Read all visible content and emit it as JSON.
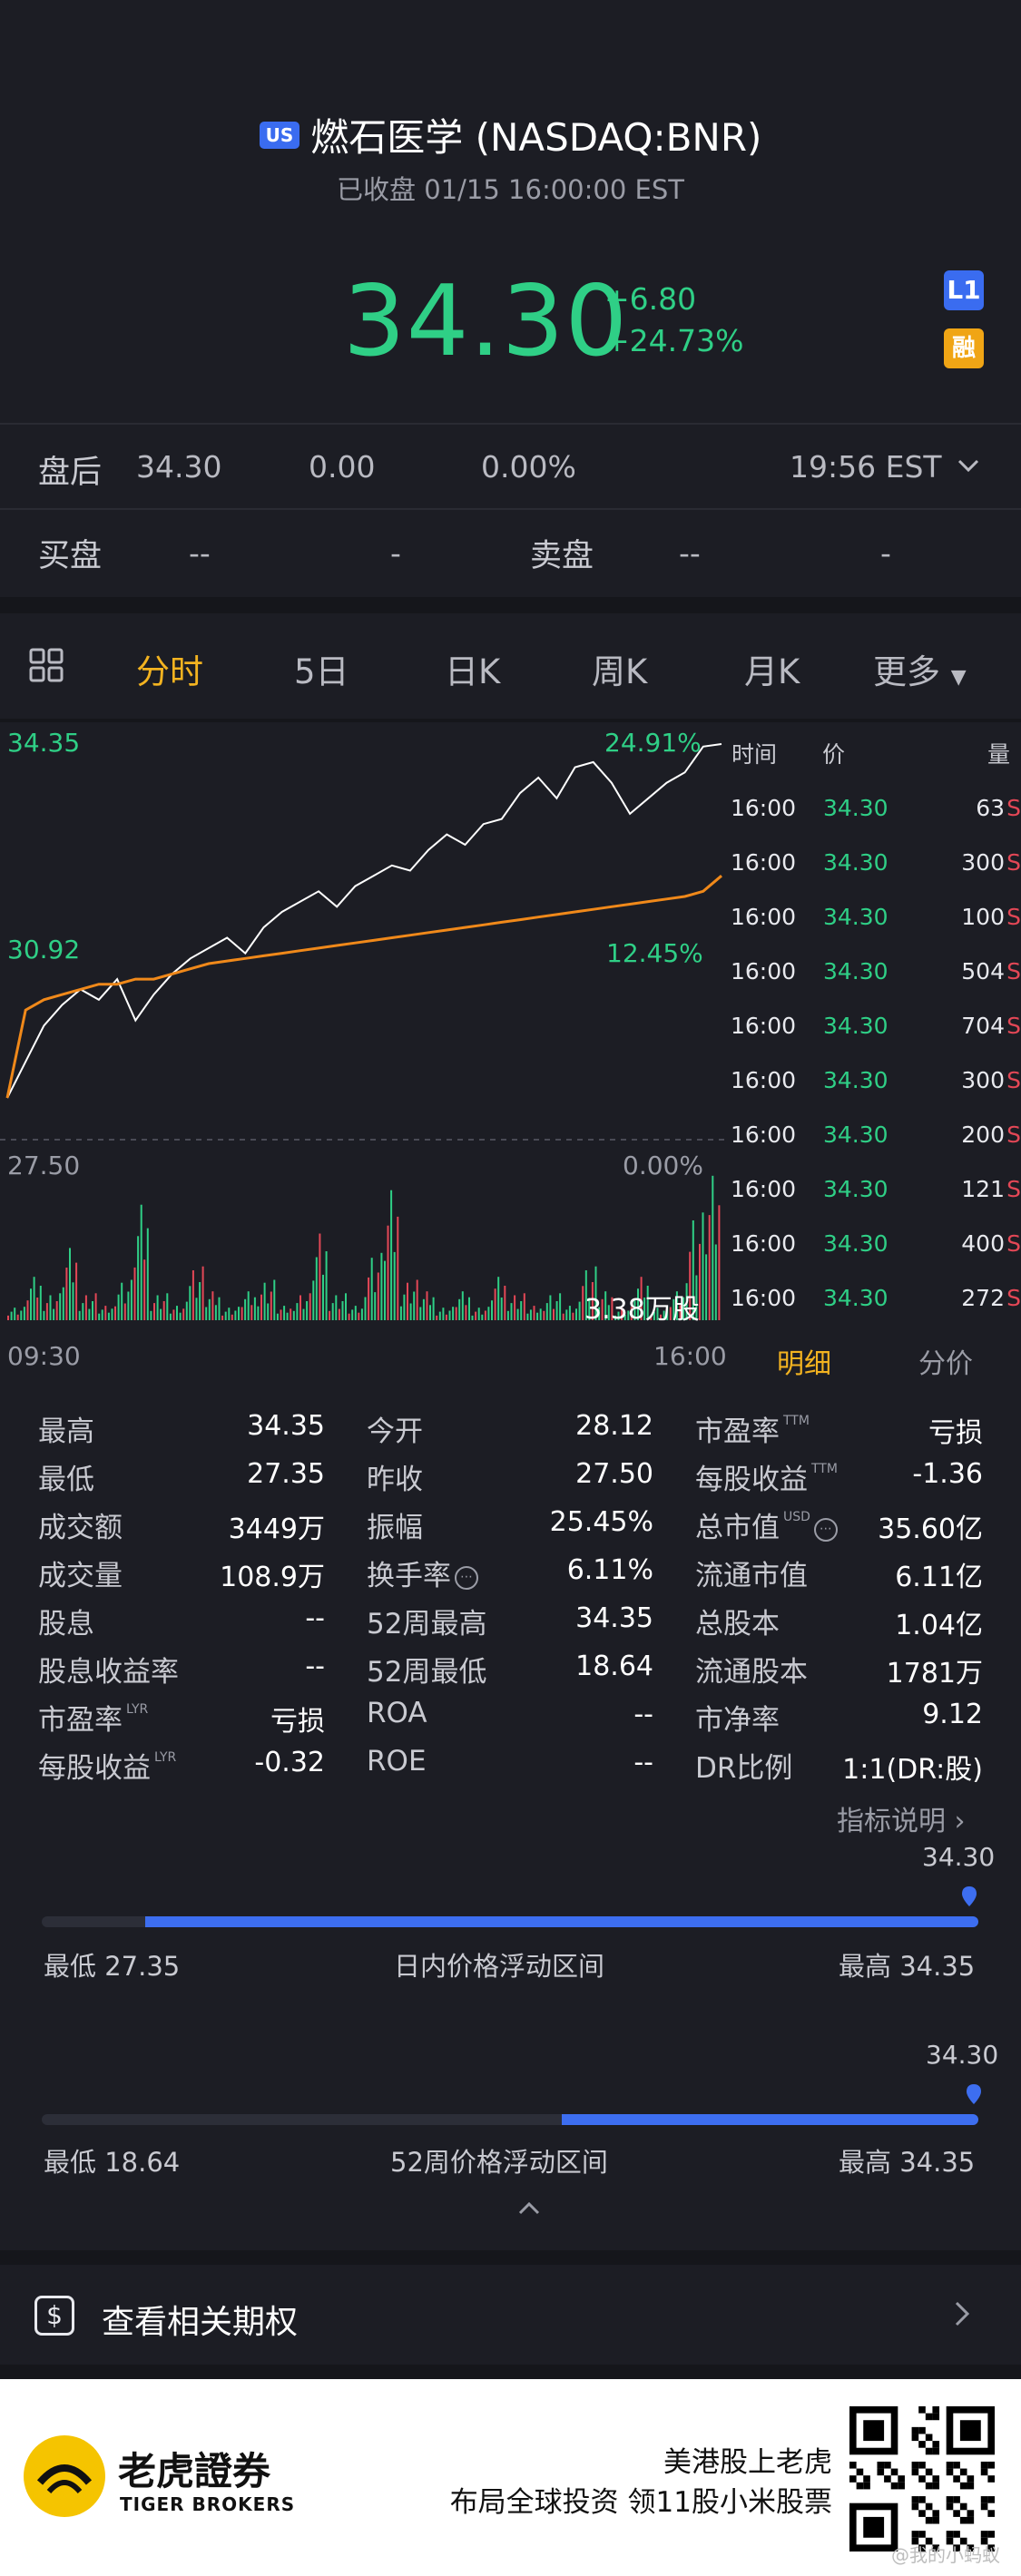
{
  "header": {
    "market_badge": "US",
    "title": "燃石医学 (NASDAQ:BNR)",
    "status": "已收盘 01/15 16:00:00 EST",
    "price": "34.30",
    "change": "+6.80",
    "change_pct": "+24.73%",
    "l1_badge": "L1",
    "margin_badge": "融"
  },
  "after_hours": {
    "label": "盘后",
    "price": "34.30",
    "change": "0.00",
    "change_pct": "0.00%",
    "time": "19:56 EST"
  },
  "quote": {
    "bid_label": "买盘",
    "bid_price": "--",
    "bid_size": "-",
    "ask_label": "卖盘",
    "ask_price": "--",
    "ask_size": "-"
  },
  "tabs": [
    {
      "label": "分时",
      "active": true
    },
    {
      "label": "5日"
    },
    {
      "label": "日K"
    },
    {
      "label": "周K"
    },
    {
      "label": "月K"
    },
    {
      "label": "更多"
    }
  ],
  "chart": {
    "price_high": "34.35",
    "pct_high": "24.91%",
    "price_mid": "30.92",
    "pct_mid": "12.45%",
    "price_low": "27.50",
    "pct_low": "0.00%",
    "volume_label": "3.38万股",
    "time_start": "09:30",
    "time_end": "16:00"
  },
  "chart_data": {
    "type": "line",
    "series": [
      {
        "values": [
          27.5,
          28.2,
          28.9,
          29.3,
          29.6,
          29.4,
          29.8,
          29.0,
          29.5,
          29.9,
          30.2,
          30.4,
          30.6,
          30.3,
          30.8,
          31.1,
          31.3,
          31.5,
          31.2,
          31.6,
          31.8,
          32.0,
          31.9,
          32.3,
          32.6,
          32.4,
          32.8,
          32.9,
          33.4,
          33.7,
          33.3,
          33.9,
          34.0,
          33.6,
          33.0,
          33.3,
          33.6,
          33.8,
          34.3,
          34.35
        ]
      },
      {
        "values": [
          27.5,
          29.2,
          29.4,
          29.5,
          29.6,
          29.7,
          29.7,
          29.8,
          29.8,
          29.9,
          30.0,
          30.1,
          30.15,
          30.2,
          30.25,
          30.3,
          30.35,
          30.4,
          30.45,
          30.5,
          30.55,
          30.6,
          30.65,
          30.7,
          30.75,
          30.8,
          30.85,
          30.9,
          30.95,
          31.0,
          31.05,
          31.1,
          31.15,
          31.2,
          31.25,
          31.3,
          31.35,
          31.4,
          31.5,
          31.8
        ]
      }
    ],
    "ylim": [
      27.5,
      34.35
    ],
    "volume": [
      1,
      3,
      2,
      5,
      2,
      1,
      3,
      8,
      2,
      1,
      4,
      2,
      1,
      2,
      3,
      1,
      2,
      6,
      2,
      1,
      5,
      9,
      3,
      2,
      1,
      2,
      1,
      3,
      2,
      1,
      2,
      1,
      4,
      2,
      1,
      3,
      1,
      2,
      8,
      10
    ]
  },
  "ticks": {
    "headers": [
      "时间",
      "价",
      "量"
    ],
    "rows": [
      {
        "time": "16:00",
        "price": "34.30",
        "vol": "63"
      },
      {
        "time": "16:00",
        "price": "34.30",
        "vol": "300"
      },
      {
        "time": "16:00",
        "price": "34.30",
        "vol": "100"
      },
      {
        "time": "16:00",
        "price": "34.30",
        "vol": "504"
      },
      {
        "time": "16:00",
        "price": "34.30",
        "vol": "704"
      },
      {
        "time": "16:00",
        "price": "34.30",
        "vol": "300"
      },
      {
        "time": "16:00",
        "price": "34.30",
        "vol": "200"
      },
      {
        "time": "16:00",
        "price": "34.30",
        "vol": "121"
      },
      {
        "time": "16:00",
        "price": "34.30",
        "vol": "400"
      },
      {
        "time": "16:00",
        "price": "34.30",
        "vol": "272"
      }
    ],
    "side": "S",
    "tab_detail": "明细",
    "tab_price": "分价"
  },
  "stats": {
    "col1": [
      {
        "label": "最高",
        "value": "34.35"
      },
      {
        "label": "最低",
        "value": "27.35"
      },
      {
        "label": "成交额",
        "value": "3449万"
      },
      {
        "label": "成交量",
        "value": "108.9万"
      },
      {
        "label": "股息",
        "value": "--"
      },
      {
        "label": "股息收益率",
        "value": "--"
      },
      {
        "label": "市盈率",
        "value": "亏损",
        "sup": "LYR"
      },
      {
        "label": "每股收益",
        "value": "-0.32",
        "sup": "LYR"
      }
    ],
    "col2": [
      {
        "label": "今开",
        "value": "28.12"
      },
      {
        "label": "昨收",
        "value": "27.50"
      },
      {
        "label": "振幅",
        "value": "25.45%"
      },
      {
        "label": "换手率",
        "value": "6.11%"
      },
      {
        "label": "52周最高",
        "value": "34.35"
      },
      {
        "label": "52周最低",
        "value": "18.64"
      },
      {
        "label": "ROA",
        "value": "--"
      },
      {
        "label": "ROE",
        "value": "--"
      }
    ],
    "col3": [
      {
        "label": "市盈率",
        "value": "亏损",
        "sup": "TTM"
      },
      {
        "label": "每股收益",
        "value": "-1.36",
        "sup": "TTM"
      },
      {
        "label": "总市值",
        "value": "35.60亿",
        "sup": "USD"
      },
      {
        "label": "流通市值",
        "value": "6.11亿"
      },
      {
        "label": "总股本",
        "value": "1.04亿"
      },
      {
        "label": "流通股本",
        "value": "1781万"
      },
      {
        "label": "市净率",
        "value": "9.12"
      },
      {
        "label": "DR比例",
        "value": "1:1(DR:股)"
      }
    ],
    "indicator_link": "指标说明"
  },
  "ranges": {
    "intraday": {
      "current": "34.30",
      "low": "最低 27.35",
      "caption": "日内价格浮动区间",
      "high": "最高 34.35",
      "fill_start": 0.11
    },
    "week52": {
      "current": "34.30",
      "low": "最低 18.64",
      "caption": "52周价格浮动区间",
      "high": "最高 34.35",
      "fill_start": 0.555
    }
  },
  "options": {
    "label": "查看相关期权"
  },
  "footer": {
    "brand_cn": "老虎證券",
    "brand_en": "TIGER BROKERS",
    "slogan1": "美港股上老虎",
    "slogan2": "布局全球投资 领11股小米股票",
    "watermark": "@我的小蚂蚁"
  },
  "colors": {
    "up": "#2fcf86",
    "down": "#e34756",
    "accent": "#f3b320",
    "blue": "#3d6ef0",
    "avg_line": "#f0891a"
  }
}
